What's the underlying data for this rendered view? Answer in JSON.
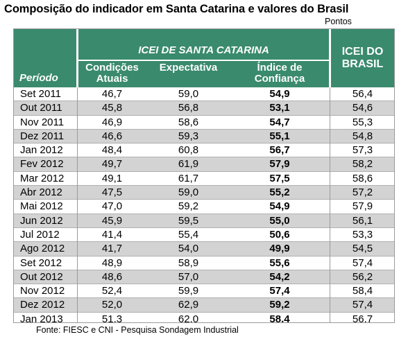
{
  "title": "Composição do indicador em Santa Catarina e valores do Brasil",
  "unit_label": "Pontos",
  "header": {
    "group_sc": "ICEI DE SANTA CATARINA",
    "period": "Período",
    "cond_line1": "Condições",
    "cond_line2": "Atuais",
    "expectativa": "Expectativa",
    "indice_line1": "Índice de",
    "indice_line2": "Confiança",
    "brasil_line1": "ICEI DO",
    "brasil_line2": "BRASIL"
  },
  "rows": [
    {
      "periodo": "Set 2011",
      "cond": "46,7",
      "exp": "59,0",
      "indice": "54,9",
      "brasil": "56,4"
    },
    {
      "periodo": "Out 2011",
      "cond": "45,8",
      "exp": "56,8",
      "indice": "53,1",
      "brasil": "54,6"
    },
    {
      "periodo": "Nov 2011",
      "cond": "46,9",
      "exp": "58,6",
      "indice": "54,7",
      "brasil": "55,3"
    },
    {
      "periodo": "Dez 2011",
      "cond": "46,6",
      "exp": "59,3",
      "indice": "55,1",
      "brasil": "54,8"
    },
    {
      "periodo": "Jan 2012",
      "cond": "48,4",
      "exp": "60,8",
      "indice": "56,7",
      "brasil": "57,3"
    },
    {
      "periodo": "Fev 2012",
      "cond": "49,7",
      "exp": "61,9",
      "indice": "57,9",
      "brasil": "58,2"
    },
    {
      "periodo": "Mar 2012",
      "cond": "49,1",
      "exp": "61,7",
      "indice": "57,5",
      "brasil": "58,6"
    },
    {
      "periodo": "Abr 2012",
      "cond": "47,5",
      "exp": "59,0",
      "indice": "55,2",
      "brasil": "57,2"
    },
    {
      "periodo": "Mai 2012",
      "cond": "47,0",
      "exp": "59,2",
      "indice": "54,9",
      "brasil": "57,9"
    },
    {
      "periodo": "Jun 2012",
      "cond": "45,9",
      "exp": "59,5",
      "indice": "55,0",
      "brasil": "56,1"
    },
    {
      "periodo": "Jul 2012",
      "cond": "41,4",
      "exp": "55,4",
      "indice": "50,6",
      "brasil": "53,3"
    },
    {
      "periodo": "Ago 2012",
      "cond": "41,7",
      "exp": "54,0",
      "indice": "49,9",
      "brasil": "54,5"
    },
    {
      "periodo": "Set 2012",
      "cond": "48,9",
      "exp": "58,9",
      "indice": "55,6",
      "brasil": "57,4"
    },
    {
      "periodo": "Out 2012",
      "cond": "48,6",
      "exp": "57,0",
      "indice": "54,2",
      "brasil": "56,2"
    },
    {
      "periodo": "Nov 2012",
      "cond": "52,4",
      "exp": "59,9",
      "indice": "57,4",
      "brasil": "58,4"
    },
    {
      "periodo": "Dez 2012",
      "cond": "52,0",
      "exp": "62,9",
      "indice": "59,2",
      "brasil": "57,4"
    },
    {
      "periodo": "Jan 2013",
      "cond": "51,3",
      "exp": "62,0",
      "indice": "58,4",
      "brasil": "56,7"
    }
  ],
  "source": "Fonte: FIESC e CNI - Pesquisa Sondagem Industrial",
  "colors": {
    "header_bg": "#3a8a6e",
    "alt_row": "#d3d3d3",
    "header_text": "#ffffff"
  }
}
